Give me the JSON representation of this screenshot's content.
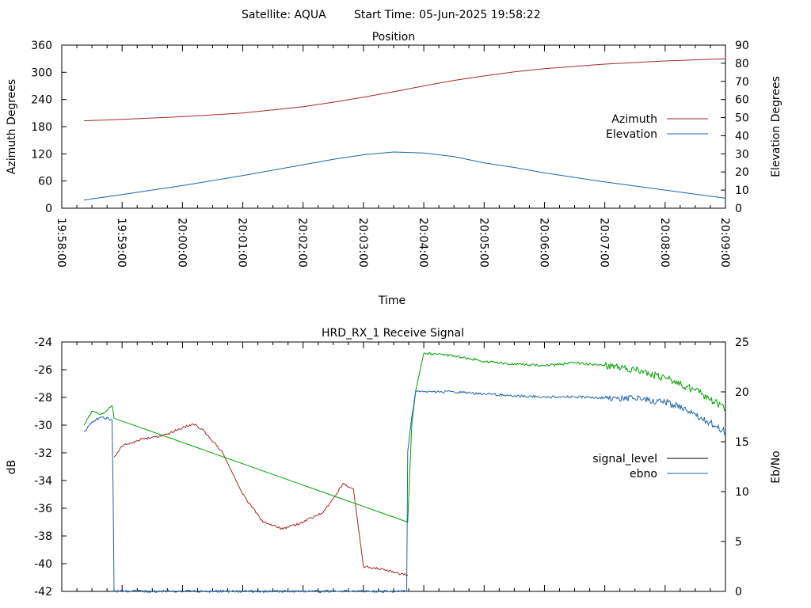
{
  "header": {
    "satellite": "Satellite: AQUA",
    "start_time": "Start Time: 05-Jun-2025 19:58:22"
  },
  "chart_data": [
    {
      "type": "line",
      "title": "Position",
      "xlabel": "Time",
      "ylabel": "Azimuth Degrees",
      "y2label": "Elevation Degrees",
      "ylim": [
        0,
        360
      ],
      "y2lim": [
        0,
        90
      ],
      "yticks": [
        0,
        60,
        120,
        180,
        240,
        300,
        360
      ],
      "y2ticks": [
        0,
        10,
        20,
        30,
        40,
        50,
        60,
        70,
        80,
        90
      ],
      "xlim": [
        "19:58:00",
        "20:09:00"
      ],
      "xticks": [
        "19:58:00",
        "19:59:00",
        "20:00:00",
        "20:01:00",
        "20:02:00",
        "20:03:00",
        "20:04:00",
        "20:05:00",
        "20:06:00",
        "20:07:00",
        "20:08:00",
        "20:09:00"
      ],
      "grid": false,
      "legend": "right",
      "series": [
        {
          "name": "Azimuth",
          "axis": "left",
          "color": "#a52a2a",
          "x": [
            "19:58:22",
            "19:59:00",
            "20:00:00",
            "20:01:00",
            "20:02:00",
            "20:02:30",
            "20:03:00",
            "20:03:30",
            "20:04:00",
            "20:04:30",
            "20:05:00",
            "20:05:30",
            "20:06:00",
            "20:07:00",
            "20:08:00",
            "20:09:00"
          ],
          "values": [
            193,
            196,
            202,
            210,
            224,
            234,
            245,
            257,
            270,
            282,
            292,
            301,
            308,
            318,
            325,
            330
          ]
        },
        {
          "name": "Elevation",
          "axis": "right",
          "color": "#1e64a8",
          "x": [
            "19:58:22",
            "19:59:00",
            "20:00:00",
            "20:01:00",
            "20:02:00",
            "20:02:30",
            "20:03:00",
            "20:03:30",
            "20:04:00",
            "20:04:30",
            "20:05:00",
            "20:05:30",
            "20:06:00",
            "20:07:00",
            "20:08:00",
            "20:09:00"
          ],
          "values": [
            4.5,
            7.5,
            12.5,
            18,
            24,
            27,
            29.5,
            31,
            30.5,
            28.5,
            25,
            22.5,
            19.5,
            14.5,
            10,
            5.5
          ]
        }
      ]
    },
    {
      "type": "line",
      "title": "HRD_RX_1 Receive Signal",
      "xlabel": "",
      "ylabel": "dB",
      "y2label": "Eb/No",
      "ylim": [
        -42,
        -24
      ],
      "y2lim": [
        0,
        25
      ],
      "yticks": [
        -42,
        -40,
        -38,
        -36,
        -34,
        -32,
        -30,
        -28,
        -26,
        -24
      ],
      "y2ticks": [
        0,
        5,
        10,
        15,
        20,
        25
      ],
      "xlim": [
        "19:58:00",
        "20:09:00"
      ],
      "grid": false,
      "legend": "right",
      "legend_entries": [
        {
          "name": "signal_level",
          "color": "#000000"
        },
        {
          "name": "ebno",
          "color": "#1e64a8"
        }
      ],
      "series": [
        {
          "name": "",
          "axis": "left",
          "color": "#a52a2a",
          "x": [
            "19:58:52",
            "19:59:00",
            "19:59:20",
            "19:59:40",
            "20:00:00",
            "20:00:10",
            "20:00:20",
            "20:00:40",
            "20:01:00",
            "20:01:20",
            "20:01:40",
            "20:02:00",
            "20:02:20",
            "20:02:40",
            "20:02:50",
            "20:03:00",
            "20:03:20",
            "20:03:40",
            "20:03:44"
          ],
          "values": [
            -32.3,
            -31.5,
            -31,
            -30.8,
            -30.2,
            -29.9,
            -30.3,
            -32,
            -35,
            -37,
            -37.5,
            -37,
            -36.3,
            -34.2,
            -34.6,
            -40.2,
            -40.4,
            -40.8,
            -40.8
          ]
        },
        {
          "name": "",
          "axis": "left",
          "color": "#00a000",
          "x": [
            "19:58:22",
            "19:58:30",
            "19:58:40",
            "19:58:50",
            "19:58:52",
            "20:03:44",
            "20:03:48",
            "20:03:52",
            "20:04:00",
            "20:04:30",
            "20:05:00",
            "20:05:30",
            "20:06:00",
            "20:06:30",
            "20:07:00",
            "20:07:30",
            "20:08:00",
            "20:08:30",
            "20:09:00"
          ],
          "values": [
            -30,
            -29,
            -29.2,
            -28.6,
            -29.5,
            -37,
            -30,
            -27.5,
            -24.8,
            -25,
            -25.4,
            -25.6,
            -25.7,
            -25.5,
            -25.7,
            -26,
            -26.6,
            -27.5,
            -28.8
          ]
        },
        {
          "name": "ebno",
          "axis": "right",
          "color": "#1e64a8",
          "x": [
            "19:58:22",
            "19:58:30",
            "19:58:40",
            "19:58:50",
            "19:58:51",
            "19:58:52",
            "20:03:43",
            "20:03:44",
            "20:03:48",
            "20:03:52",
            "20:04:00",
            "20:04:30",
            "20:05:00",
            "20:05:30",
            "20:06:00",
            "20:06:30",
            "20:07:00",
            "20:07:30",
            "20:08:00",
            "20:08:30",
            "20:09:00"
          ],
          "values": [
            16,
            17,
            17.5,
            17.2,
            10,
            0,
            0,
            14,
            17.5,
            20,
            20,
            20,
            19.8,
            19.6,
            19.5,
            19.5,
            19.4,
            19.3,
            19,
            17.8,
            16
          ]
        }
      ]
    }
  ]
}
